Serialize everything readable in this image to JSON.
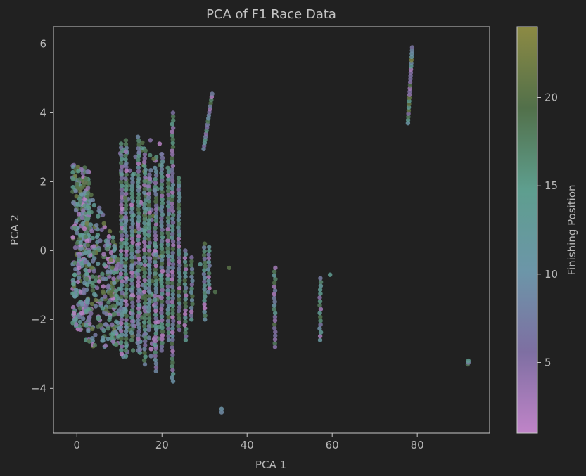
{
  "chart_data": {
    "type": "scatter",
    "title": "PCA of F1 Race Data",
    "xlabel": "PCA 1",
    "ylabel": "PCA 2",
    "xlim": [
      -5.5,
      97
    ],
    "ylim": [
      -5.3,
      6.5
    ],
    "xticks": [
      0,
      20,
      40,
      60,
      80
    ],
    "xtick_labels": [
      "0",
      "20",
      "40",
      "60",
      "80"
    ],
    "yticks": [
      -4,
      -2,
      0,
      2,
      4,
      6
    ],
    "ytick_labels": [
      "−4",
      "−2",
      "0",
      "2",
      "4",
      "6"
    ],
    "grid": false,
    "colorbar": {
      "label": "Finishing Position",
      "range": [
        1,
        24
      ],
      "ticks": [
        5,
        10,
        15,
        20
      ],
      "tick_labels": [
        "5",
        "10",
        "15",
        "20"
      ],
      "colormap_stops": [
        "#c084c8",
        "#7e6fa2",
        "#6c96a8",
        "#5e9e8e",
        "#52704a",
        "#8c8a44"
      ]
    },
    "clusters": [
      {
        "x_range": [
          -1,
          3
        ],
        "y_range": [
          -2.3,
          2.5
        ],
        "count": 300,
        "position_range": [
          1,
          22
        ]
      },
      {
        "x_range": [
          2,
          10
        ],
        "y_range": [
          -2.8,
          2.2
        ],
        "count": 280,
        "position_range": [
          1,
          22
        ]
      },
      {
        "x_range": [
          10,
          20
        ],
        "y_range": [
          -3.2,
          3.3
        ],
        "count": 150,
        "position_range": [
          1,
          22
        ]
      }
    ],
    "vertical_bands": [
      {
        "x": 10.5,
        "y_range": [
          -3.0,
          3.1
        ],
        "position_range": [
          1,
          20
        ]
      },
      {
        "x": 11.5,
        "y_range": [
          -2.9,
          3.2
        ],
        "position_range": [
          1,
          20
        ]
      },
      {
        "x": 13,
        "y_range": [
          -2.6,
          2.2
        ],
        "position_range": [
          1,
          20
        ]
      },
      {
        "x": 14.5,
        "y_range": [
          -2.9,
          3.3
        ],
        "position_range": [
          1,
          20
        ]
      },
      {
        "x": 16,
        "y_range": [
          -3.3,
          2.9
        ],
        "position_range": [
          1,
          20
        ]
      },
      {
        "x": 17,
        "y_range": [
          -2.3,
          2.2
        ],
        "position_range": [
          1,
          20
        ]
      },
      {
        "x": 18.5,
        "y_range": [
          -3.5,
          2.4
        ],
        "position_range": [
          1,
          20
        ]
      },
      {
        "x": 20,
        "y_range": [
          -2.9,
          2.8
        ],
        "position_range": [
          1,
          20
        ]
      },
      {
        "x": 21.5,
        "y_range": [
          -2.6,
          2.4
        ],
        "position_range": [
          1,
          20
        ]
      },
      {
        "x": 22.5,
        "y_range": [
          -3.8,
          4.0
        ],
        "position_range": [
          1,
          20
        ]
      },
      {
        "x": 24,
        "y_range": [
          -2.3,
          2.1
        ],
        "position_range": [
          1,
          20
        ]
      },
      {
        "x": 25.5,
        "y_range": [
          -2.6,
          0.0
        ],
        "position_range": [
          1,
          20
        ]
      },
      {
        "x": 27,
        "y_range": [
          -2.0,
          -0.2
        ],
        "position_range": [
          1,
          20
        ]
      },
      {
        "x": 30,
        "y_range": [
          -2.0,
          0.2
        ],
        "position_range": [
          1,
          20
        ]
      },
      {
        "x": 31,
        "y_range": [
          -1.2,
          0.1
        ],
        "position_range": [
          1,
          20
        ]
      },
      {
        "x": 46.5,
        "y_range": [
          -2.8,
          -0.5
        ],
        "position_range": [
          1,
          20
        ]
      },
      {
        "x": 57.2,
        "y_range": [
          -2.6,
          -0.8
        ],
        "position_range": [
          1,
          20
        ]
      },
      {
        "x": 92,
        "y_range": [
          -3.3,
          -3.2
        ],
        "position_range": [
          1,
          20
        ]
      }
    ],
    "sloped_bands": [
      {
        "x_range": [
          29.8,
          31.8
        ],
        "y_range": [
          2.95,
          4.55
        ],
        "position_range": [
          1,
          20
        ]
      },
      {
        "x_range": [
          77.8,
          78.8
        ],
        "y_range": [
          3.7,
          5.9
        ],
        "position_range": [
          1,
          24
        ]
      }
    ],
    "points": [
      {
        "x": 34,
        "y": -4.6,
        "position": 10
      },
      {
        "x": 34,
        "y": -4.7,
        "position": 9
      },
      {
        "x": 35.8,
        "y": -0.5,
        "position": 20
      },
      {
        "x": 32.5,
        "y": -1.2,
        "position": 19
      },
      {
        "x": 59.5,
        "y": -0.7,
        "position": 14
      },
      {
        "x": 29,
        "y": -0.4,
        "position": 13
      }
    ]
  }
}
